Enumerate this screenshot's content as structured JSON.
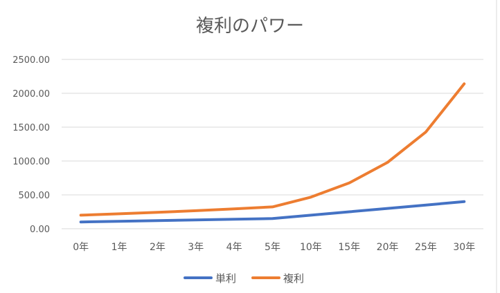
{
  "chart_data": {
    "type": "line",
    "title": "複利のパワー",
    "categories": [
      "0年",
      "1年",
      "2年",
      "3年",
      "4年",
      "5年",
      "10年",
      "15年",
      "20年",
      "25年",
      "30年"
    ],
    "series": [
      {
        "name": "単利",
        "color": "#4472C4",
        "values": [
          100,
          110,
          120,
          130,
          140,
          150,
          200,
          250,
          300,
          350,
          400
        ]
      },
      {
        "name": "複利",
        "color": "#ED7D31",
        "values": [
          200,
          220,
          242,
          266,
          293,
          322,
          466,
          676,
          980,
          1430,
          2140
        ]
      }
    ],
    "yticks": [
      "0.00",
      "500.00",
      "1000.00",
      "1500.00",
      "2000.00",
      "2500.00"
    ],
    "ylim": [
      0,
      2500
    ],
    "grid": true,
    "legend": "bottom"
  }
}
